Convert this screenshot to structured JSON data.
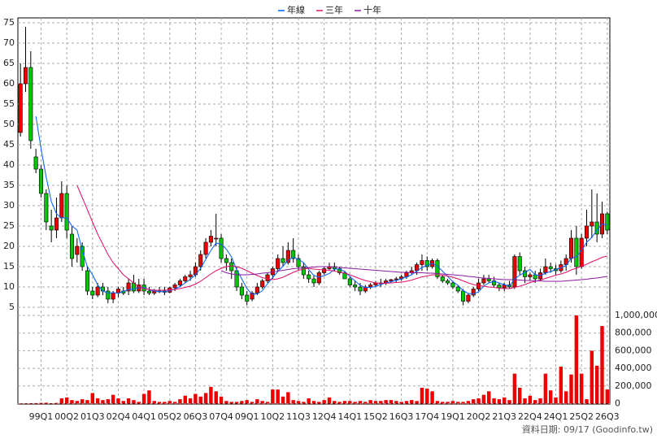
{
  "chart_data": {
    "type": "candlestick",
    "source": "資料日期: 09/17 (Goodinfo.tw)",
    "categories": [
      null,
      null,
      null,
      null,
      "99Q1",
      null,
      null,
      null,
      null,
      "00Q2",
      null,
      null,
      null,
      null,
      "01Q3",
      null,
      null,
      null,
      null,
      "02Q4",
      null,
      null,
      null,
      null,
      "04Q1",
      null,
      null,
      null,
      null,
      "05Q2",
      null,
      null,
      null,
      null,
      "06Q3",
      null,
      null,
      null,
      null,
      "07Q4",
      null,
      null,
      null,
      null,
      "09Q1",
      null,
      null,
      null,
      null,
      "10Q2",
      null,
      null,
      null,
      null,
      "11Q3",
      null,
      null,
      null,
      null,
      "12Q4",
      null,
      null,
      null,
      null,
      "14Q1",
      null,
      null,
      null,
      null,
      "15Q2",
      null,
      null,
      null,
      null,
      "16Q3",
      null,
      null,
      null,
      null,
      "17Q4",
      null,
      null,
      null,
      null,
      "19Q1",
      null,
      null,
      null,
      null,
      "20Q2",
      null,
      null,
      null,
      null,
      "21Q3",
      null,
      null,
      null,
      null,
      "22Q4",
      null,
      null,
      null,
      null,
      "24Q1",
      null,
      null,
      null,
      null,
      "25Q2",
      null,
      null,
      null,
      null,
      "26Q3"
    ],
    "open": [
      48,
      60,
      64,
      42,
      39,
      33,
      25,
      24,
      27,
      33,
      23,
      18,
      20,
      14,
      9,
      8,
      10,
      9,
      7,
      8.5,
      9,
      9,
      11,
      9,
      10.5,
      9,
      8.5,
      9,
      9,
      8.7,
      9.8,
      10.5,
      11.5,
      12.5,
      13,
      15,
      18,
      21,
      22,
      22,
      17,
      16,
      14,
      10,
      8,
      7,
      8.5,
      10,
      11.5,
      13,
      14.5,
      17,
      16,
      19,
      17,
      15,
      13,
      12,
      11,
      13.5,
      14.5,
      15,
      14.5,
      13.5,
      12,
      10.5,
      10,
      9,
      10,
      10.5,
      11,
      11,
      11.5,
      11.8,
      12,
      12.5,
      13.5,
      14,
      15.5,
      16.5,
      15,
      16.5,
      12.5,
      11.5,
      11,
      10,
      9,
      6.5,
      8,
      9.5,
      11,
      12,
      11.5,
      10.5,
      9.8,
      10.5,
      10,
      17.5,
      14,
      12.5,
      13,
      12,
      13.5,
      15,
      14.5,
      14,
      15.5,
      17,
      22,
      15,
      22,
      25,
      26,
      23,
      28
    ],
    "high": [
      65,
      74,
      68,
      44,
      40,
      34,
      29,
      32,
      36,
      35,
      25,
      22,
      21,
      15,
      10,
      11,
      11,
      10,
      9,
      10,
      10,
      12,
      13,
      12,
      12,
      10,
      9.5,
      10,
      10,
      10,
      11,
      12,
      13,
      14,
      16,
      19,
      22,
      24,
      28,
      23,
      18,
      17,
      15,
      11,
      9,
      9,
      11,
      12,
      13.5,
      15,
      18,
      20,
      21,
      22,
      18,
      16,
      14,
      13,
      14,
      15,
      16,
      16,
      15,
      14,
      12.5,
      11.5,
      11,
      10.5,
      11,
      11.5,
      12,
      12,
      12,
      12.5,
      13,
      14,
      15,
      16,
      18,
      17.5,
      17,
      17,
      13,
      12,
      11.5,
      10.5,
      9.5,
      8.5,
      10,
      12,
      13,
      13,
      12.5,
      11,
      11,
      11.5,
      18,
      18.5,
      15,
      13.5,
      14,
      14.5,
      17,
      16,
      15.5,
      16.5,
      18,
      24,
      25,
      23,
      29,
      34,
      33,
      31,
      28.5
    ],
    "low": [
      47,
      58,
      44,
      38,
      32,
      24,
      21,
      22,
      26,
      22,
      15,
      16,
      14,
      8,
      7,
      7.5,
      8,
      6,
      6,
      7.5,
      8,
      8,
      8.5,
      8.5,
      8,
      8,
      8,
      8.5,
      8,
      8.5,
      9,
      10,
      11,
      11.5,
      12.5,
      14,
      17,
      20,
      20,
      16,
      14,
      12,
      9,
      7,
      5.5,
      6.5,
      8,
      9.5,
      11,
      12,
      14,
      15,
      15.5,
      16,
      14,
      12,
      11,
      10,
      10.5,
      13,
      14,
      14,
      13,
      12,
      10,
      9,
      8,
      8.5,
      9.5,
      10,
      10,
      10.5,
      11,
      11,
      11.5,
      12,
      13,
      13,
      14,
      14,
      14.5,
      12,
      11,
      10.5,
      9.5,
      8.5,
      5.5,
      6,
      7.5,
      9,
      10.5,
      11,
      10,
      9,
      9,
      9.5,
      9.5,
      13,
      11,
      11.5,
      11,
      11.5,
      13,
      13.5,
      13,
      13.5,
      14,
      16,
      13,
      14.5,
      20,
      22,
      21,
      22,
      23
    ],
    "close": [
      60,
      64,
      46,
      39,
      33,
      26,
      24,
      27,
      33,
      24,
      17,
      20,
      15,
      9,
      8,
      10,
      9,
      7,
      8.5,
      9.5,
      8.5,
      11,
      9,
      10.5,
      9,
      8.5,
      9,
      9,
      8.7,
      9.8,
      10.5,
      11.5,
      12.5,
      13,
      15,
      18,
      21,
      22.5,
      22,
      17,
      16,
      14,
      10,
      8,
      6.5,
      8.5,
      10,
      11.5,
      13,
      14.5,
      17,
      16,
      19,
      17,
      15,
      13,
      12,
      11,
      13.5,
      14.5,
      15,
      14.5,
      13.5,
      12,
      10.5,
      10,
      9,
      10,
      10.5,
      11,
      11,
      11.5,
      11.8,
      12,
      12.5,
      13.5,
      14,
      15.5,
      16.5,
      15,
      16.5,
      12.5,
      11.5,
      11,
      10,
      9,
      6.5,
      8,
      9.5,
      11,
      12,
      11.5,
      10.5,
      9.8,
      10.5,
      10,
      17.5,
      14,
      12.5,
      13,
      12,
      13.5,
      15,
      14.5,
      14,
      15.5,
      17,
      22,
      15,
      22,
      25,
      26,
      23,
      28,
      24
    ],
    "up_color": "#ee0000",
    "down_color": "#00c800",
    "ylim": [
      4.6,
      76.2
    ],
    "yticks": [
      5,
      10,
      15,
      20,
      25,
      30,
      35,
      40,
      45,
      50,
      55,
      60,
      65,
      70,
      75
    ],
    "grid": true,
    "legend": "top",
    "series": [
      {
        "name": "年線",
        "color": "#0060ff",
        "values": [
          null,
          null,
          null,
          52,
          44,
          37,
          31,
          28,
          27,
          27,
          25,
          24,
          19,
          15,
          13,
          10.5,
          9,
          8.5,
          8.6,
          8.5,
          8.9,
          9.4,
          9.5,
          9.8,
          9.9,
          9.3,
          9,
          8.9,
          8.8,
          9.1,
          9.5,
          10.1,
          11,
          11.9,
          13,
          14.6,
          16.8,
          19,
          20.8,
          20.5,
          19.3,
          17.4,
          14.3,
          12,
          9.6,
          8.2,
          8.3,
          9.1,
          10.8,
          12.3,
          13.8,
          15.1,
          16.6,
          17.3,
          16.8,
          16,
          14.3,
          12.8,
          12.4,
          12.8,
          13.3,
          14.4,
          14.4,
          13.8,
          12.6,
          11.5,
          10.4,
          9.9,
          9.9,
          10.1,
          10.6,
          11,
          11.3,
          11.6,
          12,
          12.5,
          13,
          13.9,
          14.8,
          15.3,
          15.8,
          15.1,
          13.9,
          12.6,
          11.3,
          10.4,
          9.1,
          8.4,
          8.3,
          8.8,
          10.2,
          11,
          11.4,
          11,
          10.6,
          10.2,
          12,
          12.9,
          13.6,
          14.3,
          13,
          12.8,
          13.4,
          13.8,
          14.3,
          14.7,
          15.3,
          17.1,
          17.4,
          19,
          21,
          22.2,
          24,
          25.5,
          25.3
        ]
      },
      {
        "name": "三年",
        "color": "#e0106a",
        "values": [
          null,
          null,
          null,
          null,
          null,
          null,
          null,
          null,
          null,
          null,
          null,
          35,
          32,
          29,
          26,
          23,
          20.5,
          18,
          16,
          14.5,
          13,
          12,
          11,
          10,
          9.6,
          9.4,
          9.2,
          9.2,
          9.2,
          9.3,
          9.4,
          9.6,
          9.9,
          10.2,
          10.7,
          11.4,
          12.3,
          13.2,
          14,
          14.6,
          15,
          15.2,
          15,
          14.6,
          14,
          13.4,
          12.8,
          12.3,
          12,
          11.8,
          12,
          12.4,
          13,
          13.6,
          14.1,
          14.4,
          14.6,
          14.4,
          14.3,
          14.2,
          14.1,
          13.9,
          13.7,
          13.4,
          13,
          12.5,
          12,
          11.6,
          11.3,
          11,
          10.9,
          10.9,
          11,
          11.1,
          11.2,
          11.4,
          11.7,
          12.1,
          12.5,
          12.7,
          13,
          13,
          12.9,
          12.7,
          12.4,
          12,
          11.5,
          11,
          10.6,
          10.3,
          10.2,
          10,
          9.9,
          9.7,
          9.6,
          9.6,
          9.9,
          10.2,
          10.6,
          11.1,
          11.4,
          11.7,
          12.1,
          12.5,
          12.9,
          13.2,
          13.6,
          14.2,
          14.6,
          15.1,
          15.6,
          16.2,
          16.7,
          17.3,
          17.6
        ]
      },
      {
        "name": "十年",
        "color": "#8a1aa0",
        "values": [
          null,
          null,
          null,
          null,
          null,
          null,
          null,
          null,
          null,
          null,
          null,
          null,
          null,
          null,
          null,
          null,
          null,
          null,
          null,
          null,
          null,
          null,
          null,
          null,
          null,
          null,
          null,
          null,
          null,
          null,
          null,
          null,
          null,
          null,
          null,
          null,
          null,
          null,
          null,
          14,
          13.5,
          13.2,
          13,
          13,
          13,
          13.1,
          13.2,
          13.4,
          13.5,
          13.7,
          13.9,
          14.1,
          14.3,
          14.5,
          14.6,
          14.7,
          14.8,
          14.9,
          15,
          15,
          15,
          14.9,
          14.8,
          14.7,
          14.6,
          14.5,
          14.4,
          14.3,
          14.2,
          14.1,
          14,
          13.9,
          13.8,
          13.7,
          13.6,
          13.6,
          13.5,
          13.5,
          13.5,
          13.4,
          13.4,
          13.3,
          13.2,
          13.1,
          13,
          12.9,
          12.8,
          12.6,
          12.5,
          12.3,
          12.2,
          12.1,
          12,
          11.9,
          11.8,
          11.8,
          11.8,
          11.7,
          11.6,
          11.6,
          11.5,
          11.5,
          11.4,
          11.4,
          11.4,
          11.4,
          11.5,
          11.6,
          11.7,
          11.8,
          11.9,
          12.1,
          12.2,
          12.4,
          12.6
        ]
      }
    ],
    "volume": {
      "color": "#ee0000",
      "values": [
        3000,
        4000,
        5000,
        6000,
        8000,
        10000,
        5000,
        8000,
        60000,
        70000,
        40000,
        30000,
        50000,
        40000,
        120000,
        60000,
        40000,
        50000,
        100000,
        60000,
        30000,
        60000,
        40000,
        20000,
        110000,
        150000,
        30000,
        20000,
        20000,
        30000,
        20000,
        50000,
        90000,
        60000,
        110000,
        80000,
        120000,
        190000,
        140000,
        80000,
        30000,
        20000,
        20000,
        30000,
        40000,
        20000,
        50000,
        30000,
        20000,
        160000,
        160000,
        80000,
        130000,
        40000,
        30000,
        20000,
        60000,
        30000,
        20000,
        40000,
        70000,
        30000,
        20000,
        30000,
        30000,
        20000,
        30000,
        20000,
        40000,
        30000,
        30000,
        40000,
        40000,
        30000,
        20000,
        30000,
        40000,
        30000,
        180000,
        170000,
        140000,
        30000,
        20000,
        20000,
        30000,
        20000,
        20000,
        30000,
        50000,
        60000,
        100000,
        140000,
        60000,
        50000,
        70000,
        40000,
        340000,
        180000,
        60000,
        90000,
        40000,
        60000,
        340000,
        150000,
        70000,
        420000,
        140000,
        330000,
        1000000,
        340000,
        50000,
        600000,
        430000,
        880000,
        160000
      ],
      "ylim": [
        0,
        1074000
      ],
      "yticks": [
        0,
        {
          "value": 200000,
          "label": "200,000"
        },
        {
          "value": 400000,
          "label": "400,000"
        },
        {
          "value": 600000,
          "label": "600,000"
        },
        {
          "value": 800000,
          "label": "800,000"
        },
        {
          "value": 1000000,
          "label": "1,000,000"
        }
      ]
    }
  }
}
